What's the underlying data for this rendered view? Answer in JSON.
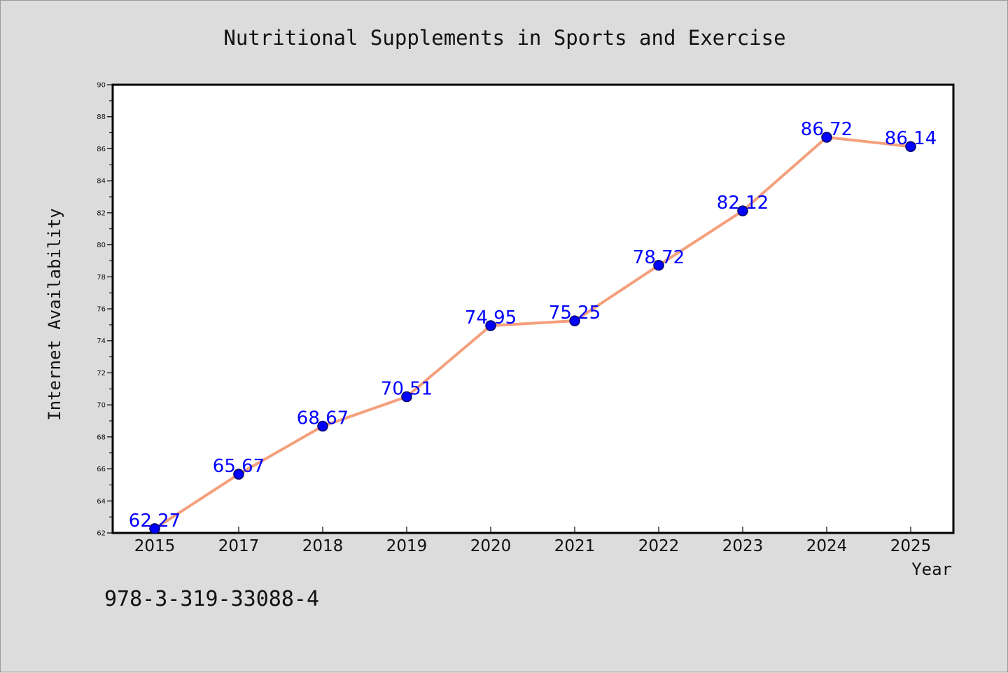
{
  "chart_data": {
    "type": "line",
    "title": "Nutritional Supplements in Sports and Exercise",
    "xlabel": "Year",
    "ylabel": "Internet Availability",
    "categories": [
      "2015",
      "2017",
      "2018",
      "2019",
      "2020",
      "2021",
      "2022",
      "2023",
      "2024",
      "2025"
    ],
    "values": [
      62.27,
      65.67,
      68.67,
      70.51,
      74.95,
      75.25,
      78.72,
      82.12,
      86.72,
      86.14
    ],
    "data_labels": [
      "62.27",
      "65.67",
      "68.67",
      "70.51",
      "74.95",
      "75.25",
      "78.72",
      "82.12",
      "86.72",
      "86.14"
    ],
    "ylim": [
      62,
      90
    ],
    "yticks": [
      62,
      64,
      66,
      68,
      70,
      72,
      74,
      76,
      78,
      80,
      82,
      84,
      86,
      88,
      90
    ],
    "grid": false,
    "legend": "none",
    "colors": {
      "line": "#f4a07c",
      "marker": "#0000ff",
      "marker_edge": "#00005e",
      "data_label": "#0000ff",
      "plot_background": "#ffffff",
      "figure_background": "#dcdcdc"
    }
  },
  "footer": {
    "code": "978-3-319-33088-4"
  }
}
